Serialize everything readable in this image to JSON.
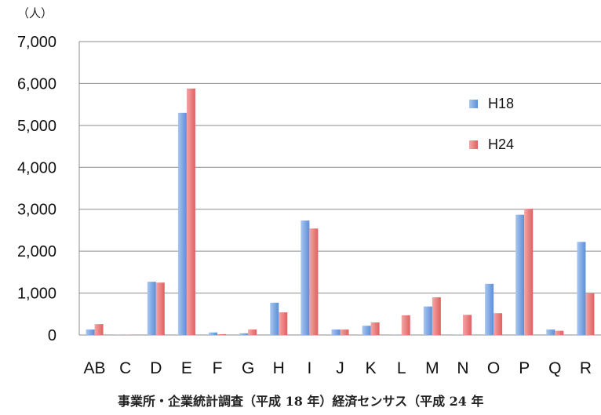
{
  "chart_data": {
    "type": "bar",
    "unit_label": "（人）",
    "categories": [
      "AB",
      "C",
      "D",
      "E",
      "F",
      "G",
      "H",
      "I",
      "J",
      "K",
      "L",
      "M",
      "N",
      "O",
      "P",
      "Q",
      "R"
    ],
    "series": [
      {
        "name": "H18",
        "color": "#5b8fd6",
        "values": [
          130,
          5,
          1270,
          5300,
          60,
          40,
          770,
          2730,
          130,
          220,
          5,
          680,
          5,
          1220,
          2870,
          130,
          2220
        ]
      },
      {
        "name": "H24",
        "color": "#e06060",
        "values": [
          260,
          5,
          1250,
          5880,
          20,
          130,
          540,
          2540,
          130,
          300,
          470,
          900,
          480,
          520,
          3010,
          100,
          990
        ]
      }
    ],
    "ylim": [
      0,
      7000
    ],
    "yticks": [
      "0",
      "1,000",
      "2,000",
      "3,000",
      "4,000",
      "5,000",
      "6,000",
      "7,000"
    ],
    "grid": true,
    "legend": "top-right"
  },
  "footer": {
    "source": "事業所・企業統計調査（平成 18 年）経済センサス（平成 24 年"
  }
}
